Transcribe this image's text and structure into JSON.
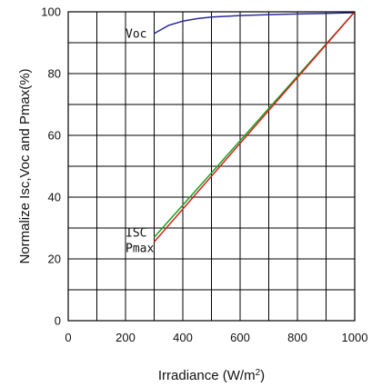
{
  "chart_data": {
    "type": "line",
    "xlabel": "Irradiance (W/m",
    "xlabel_sup": "2",
    "xlabel_tail": ")",
    "ylabel": "Normalize Isc,Voc and Pmax(%)",
    "xlim": [
      0,
      1000
    ],
    "ylim": [
      0,
      100
    ],
    "grid": true,
    "x_ticks": [
      0,
      100,
      200,
      300,
      400,
      500,
      600,
      700,
      800,
      900,
      1000
    ],
    "x_tick_labels": [
      "0",
      "",
      "200",
      "",
      "400",
      "",
      "600",
      "",
      "800",
      "",
      "1000"
    ],
    "y_ticks": [
      0,
      10,
      20,
      30,
      40,
      50,
      60,
      70,
      80,
      90,
      100
    ],
    "y_tick_labels": [
      "0",
      "",
      "20",
      "",
      "40",
      "",
      "60",
      "",
      "80",
      "",
      "100"
    ],
    "series": [
      {
        "name": "Voc",
        "color": "#2b2b99",
        "x": [
          300,
          320,
          350,
          400,
          450,
          500,
          600,
          700,
          800,
          900,
          1000
        ],
        "y": [
          93,
          94,
          95.6,
          97,
          97.8,
          98.3,
          98.8,
          99.1,
          99.3,
          99.5,
          99.7
        ]
      },
      {
        "name": "ISC",
        "color": "#1aa01a",
        "x": [
          300,
          1000
        ],
        "y": [
          27,
          100
        ]
      },
      {
        "name": "Pmax",
        "color": "#d62020",
        "x": [
          300,
          1000
        ],
        "y": [
          25.5,
          100
        ]
      }
    ],
    "annotations": [
      {
        "text": "Voc",
        "x": 200,
        "y": 93
      },
      {
        "text": "ISC",
        "x": 200,
        "y": 28.5
      },
      {
        "text": "Pmax",
        "x": 200,
        "y": 23.5
      }
    ]
  }
}
